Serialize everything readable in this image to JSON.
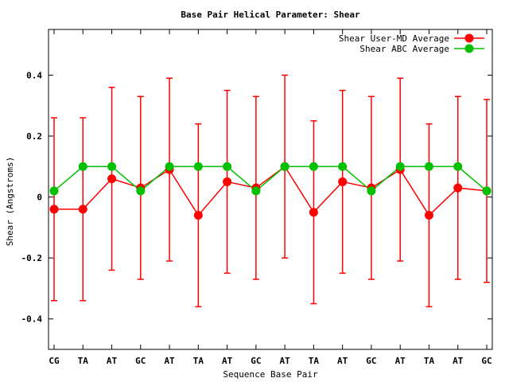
{
  "chart_data": {
    "type": "line",
    "title": "Base Pair Helical Parameter: Shear",
    "xlabel": "Sequence Base Pair",
    "ylabel": "Shear (Angstroms)",
    "categories": [
      "CG",
      "TA",
      "AT",
      "GC",
      "AT",
      "TA",
      "AT",
      "GC",
      "AT",
      "TA",
      "AT",
      "GC",
      "AT",
      "TA",
      "AT",
      "GC"
    ],
    "ylim": [
      -0.5,
      0.55
    ],
    "yticks": [
      -0.4,
      -0.2,
      0,
      0.2,
      0.4
    ],
    "ytick_labels": [
      "-0.4",
      "-0.2",
      "0",
      "0.2",
      "0.4"
    ],
    "grid": false,
    "legend_position": "top-right",
    "series": [
      {
        "name": "Shear User-MD Average",
        "color": "#ff0000",
        "values": [
          -0.04,
          -0.04,
          0.06,
          0.03,
          0.09,
          -0.06,
          0.05,
          0.03,
          0.1,
          -0.05,
          0.05,
          0.03,
          0.09,
          -0.06,
          0.03,
          0.02
        ],
        "error_low": [
          -0.34,
          -0.34,
          -0.24,
          -0.27,
          -0.21,
          -0.36,
          -0.25,
          -0.27,
          -0.2,
          -0.35,
          -0.25,
          -0.27,
          -0.21,
          -0.36,
          -0.27,
          -0.28
        ],
        "error_high": [
          0.26,
          0.26,
          0.36,
          0.33,
          0.39,
          0.24,
          0.35,
          0.33,
          0.4,
          0.25,
          0.35,
          0.33,
          0.39,
          0.24,
          0.33,
          0.32
        ]
      },
      {
        "name": "Shear ABC Average",
        "color": "#00c000",
        "values": [
          0.02,
          0.1,
          0.1,
          0.02,
          0.1,
          0.1,
          0.1,
          0.02,
          0.1,
          0.1,
          0.1,
          0.02,
          0.1,
          0.1,
          0.1,
          0.02
        ]
      }
    ]
  }
}
